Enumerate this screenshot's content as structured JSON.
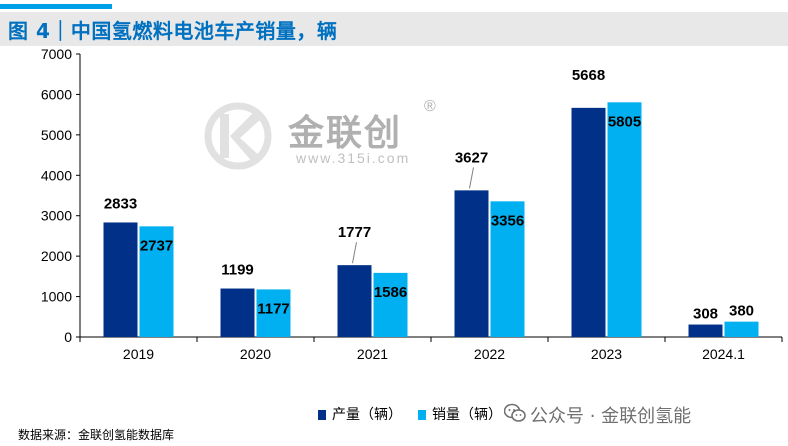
{
  "title": "图 4｜中国氢燃料电池车产销量，辆",
  "source": "数据来源：金联创氢能数据库",
  "watermark": {
    "brand": "金联创",
    "registered": "®",
    "url": "www.315i.com",
    "footer": "公众号 · 金联创氢能"
  },
  "colors": {
    "production": "#003087",
    "sales": "#00b0f0",
    "title": "#0070c0"
  },
  "icons": [
    "wechat-icon",
    "brand-logo-icon"
  ],
  "chart_data": {
    "type": "bar",
    "title": "中国氢燃料电池车产销量，辆",
    "xlabel": "",
    "ylabel": "",
    "categories": [
      "2019",
      "2020",
      "2021",
      "2022",
      "2023",
      "2024.1"
    ],
    "series": [
      {
        "name": "产量（辆）",
        "values": [
          2833,
          1199,
          1777,
          3627,
          5668,
          308
        ]
      },
      {
        "name": "销量（辆）",
        "values": [
          2737,
          1177,
          1586,
          3356,
          5805,
          380
        ]
      }
    ],
    "ylim": [
      0,
      7000
    ],
    "yticks": [
      "0",
      "1000",
      "2000",
      "3000",
      "4000",
      "5000",
      "6000",
      "7000"
    ],
    "grid": false,
    "legend": "bottom"
  }
}
